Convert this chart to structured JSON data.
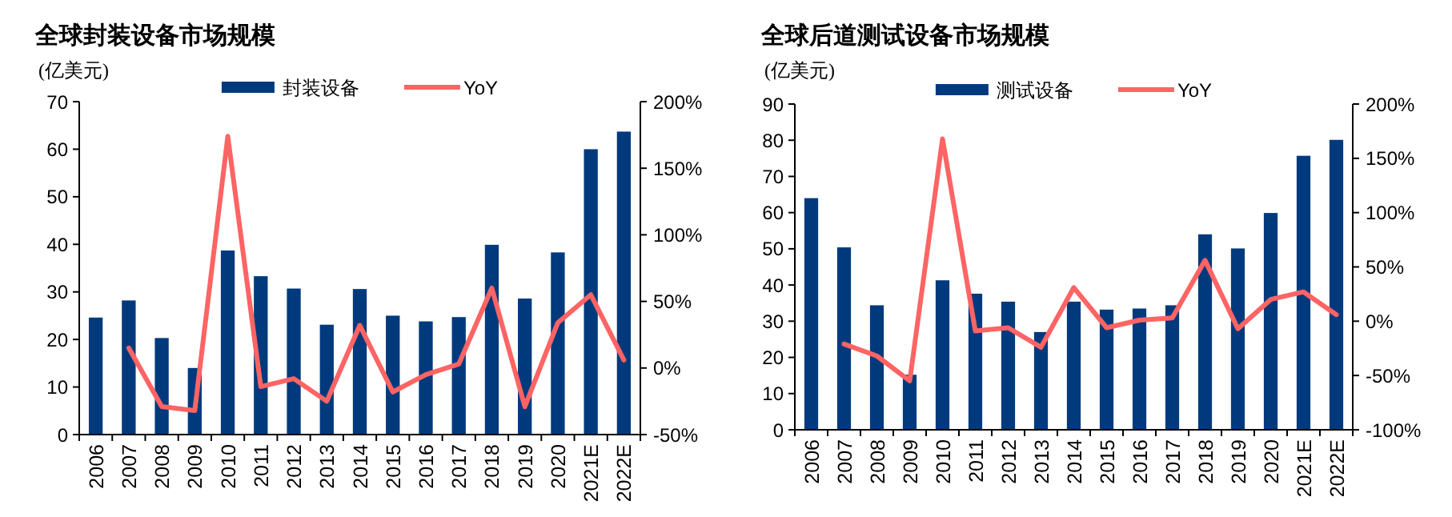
{
  "chart_data": [
    {
      "type": "bar",
      "title": "全球封装设备市场规模",
      "ylabel": "(亿美元)",
      "categories": [
        "2006",
        "2007",
        "2008",
        "2009",
        "2010",
        "2011",
        "2012",
        "2013",
        "2014",
        "2015",
        "2016",
        "2017",
        "2018",
        "2019",
        "2020",
        "2021E",
        "2022E"
      ],
      "series": [
        {
          "name": "封装设备",
          "color": "#003a7d",
          "values": [
            24.6,
            28.2,
            20.3,
            14.0,
            38.7,
            33.3,
            30.7,
            23.1,
            30.6,
            25.0,
            23.8,
            24.7,
            39.9,
            28.6,
            38.3,
            60.0,
            63.7
          ]
        },
        {
          "name": "YoY",
          "type": "line",
          "axis": "y2",
          "color": "#fe6464",
          "values": [
            null,
            15,
            -29,
            -32,
            174,
            -14,
            -8,
            -25,
            32,
            -18,
            -5,
            3,
            60,
            -29,
            34,
            55,
            6
          ]
        }
      ],
      "ylim": [
        0,
        70
      ],
      "yticks": [
        0,
        10,
        20,
        30,
        40,
        50,
        60,
        70
      ],
      "y2lim": [
        -50,
        200
      ],
      "y2ticks": [
        {
          "value": -50,
          "label": "-50%"
        },
        {
          "value": 0,
          "label": "0%"
        },
        {
          "value": 50,
          "label": "50%"
        },
        {
          "value": 100,
          "label": "100%"
        },
        {
          "value": 150,
          "label": "150%"
        },
        {
          "value": 200,
          "label": "200%"
        }
      ],
      "legend": "top"
    },
    {
      "type": "bar",
      "title": "全球后道测试设备市场规模",
      "ylabel": "(亿美元)",
      "categories": [
        "2006",
        "2007",
        "2008",
        "2009",
        "2010",
        "2011",
        "2012",
        "2013",
        "2014",
        "2015",
        "2016",
        "2017",
        "2018",
        "2019",
        "2020",
        "2021E",
        "2022E"
      ],
      "series": [
        {
          "name": "测试设备",
          "color": "#003a7d",
          "values": [
            64.0,
            50.4,
            34.4,
            15.2,
            41.3,
            37.6,
            35.4,
            27.0,
            35.4,
            33.2,
            33.5,
            34.4,
            54.0,
            50.1,
            59.9,
            75.7,
            80.1
          ]
        },
        {
          "name": "YoY",
          "type": "line",
          "axis": "y2",
          "color": "#fe6464",
          "values": [
            null,
            -21,
            -32,
            -55,
            168,
            -9,
            -6,
            -24,
            31,
            -6,
            1,
            3,
            56,
            -7,
            20,
            27,
            6
          ]
        }
      ],
      "ylim": [
        0,
        90
      ],
      "yticks": [
        0,
        10,
        20,
        30,
        40,
        50,
        60,
        70,
        80,
        90
      ],
      "y2lim": [
        -100,
        200
      ],
      "y2ticks": [
        {
          "value": -100,
          "label": "-100%"
        },
        {
          "value": -50,
          "label": "-50%"
        },
        {
          "value": 0,
          "label": "0%"
        },
        {
          "value": 50,
          "label": "50%"
        },
        {
          "value": 100,
          "label": "100%"
        },
        {
          "value": 150,
          "label": "150%"
        },
        {
          "value": 200,
          "label": "200%"
        }
      ],
      "legend": "top"
    }
  ]
}
